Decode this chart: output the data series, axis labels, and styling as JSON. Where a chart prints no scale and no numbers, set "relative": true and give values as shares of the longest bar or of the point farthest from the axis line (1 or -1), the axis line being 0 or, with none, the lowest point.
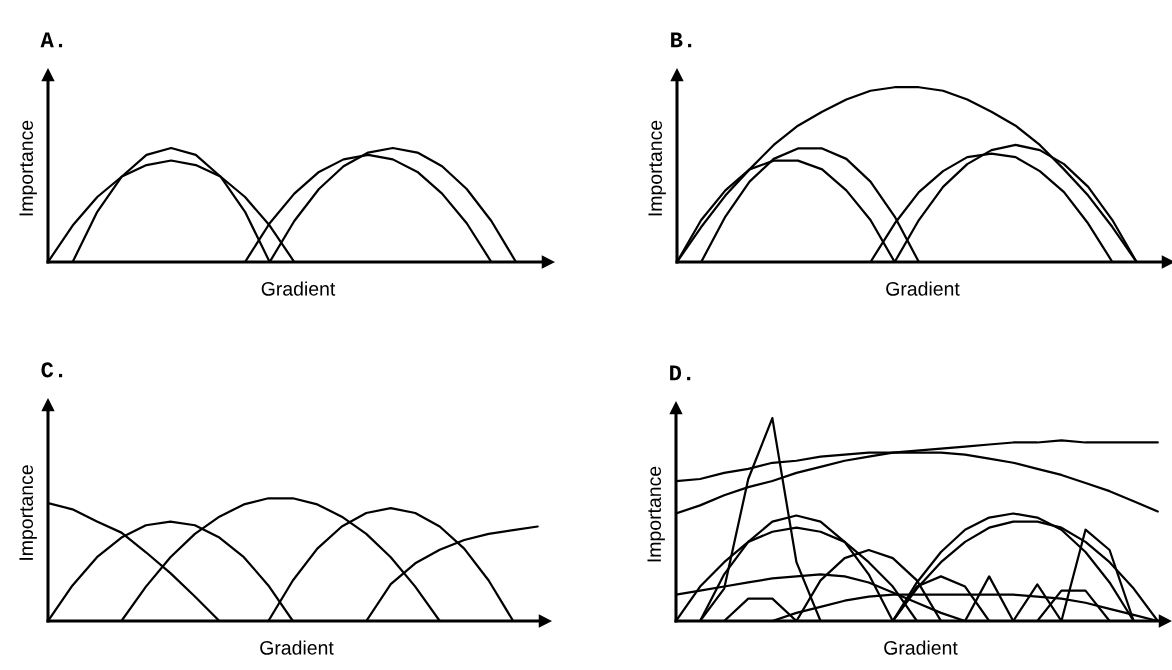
{
  "chart_data": [
    {
      "type": "line",
      "title": "A.",
      "xlabel": "Gradient",
      "ylabel": "Importance",
      "relative": true,
      "tick_labels": false,
      "categories": [
        null,
        null,
        null,
        null,
        null,
        null,
        null,
        null,
        null,
        null,
        null,
        null,
        null,
        null,
        null,
        null,
        null,
        null,
        null,
        null,
        null
      ],
      "series": [
        {
          "color": "#000000",
          "values": [
            null,
            0,
            0.44,
            0.75,
            0.94,
            1,
            0.94,
            0.75,
            0.44,
            0,
            null,
            null,
            null,
            null,
            null,
            null,
            null,
            null,
            null,
            null,
            null
          ]
        },
        {
          "color": "#000000",
          "values": [
            0,
            0.32,
            0.57,
            0.75,
            0.85,
            0.89,
            0.85,
            0.75,
            0.57,
            0.32,
            0,
            null,
            null,
            null,
            null,
            null,
            null,
            null,
            null,
            null,
            null
          ]
        },
        {
          "color": "#000000",
          "values": [
            null,
            null,
            null,
            null,
            null,
            null,
            null,
            null,
            null,
            0,
            0.36,
            0.64,
            0.84,
            0.96,
            1,
            0.96,
            0.84,
            0.64,
            0.36,
            0,
            null
          ]
        },
        {
          "color": "#000000",
          "values": [
            null,
            null,
            null,
            null,
            null,
            null,
            null,
            null,
            0,
            0.34,
            0.6,
            0.79,
            0.9,
            0.94,
            0.9,
            0.79,
            0.6,
            0.34,
            0,
            null,
            null
          ]
        }
      ]
    },
    {
      "type": "line",
      "title": "B.",
      "xlabel": "Gradient",
      "ylabel": "Importance",
      "relative": true,
      "tick_labels": false,
      "categories": [
        null,
        null,
        null,
        null,
        null,
        null,
        null,
        null,
        null,
        null,
        null,
        null,
        null,
        null,
        null,
        null,
        null,
        null,
        null,
        null,
        null
      ],
      "series": [
        {
          "color": "#000000",
          "values": [
            0,
            0.2,
            0.38,
            0.53,
            0.67,
            0.78,
            0.86,
            0.93,
            0.98,
            1,
            1,
            0.98,
            0.93,
            0.86,
            0.78,
            0.67,
            0.53,
            0.38,
            0.2,
            0,
            null
          ]
        },
        {
          "color": "#000000",
          "values": [
            null,
            0,
            0.26,
            0.46,
            0.59,
            0.65,
            0.65,
            0.59,
            0.46,
            0.26,
            0,
            null,
            null,
            null,
            null,
            null,
            null,
            null,
            null,
            null,
            null
          ]
        },
        {
          "color": "#000000",
          "values": [
            0,
            0.24,
            0.41,
            0.53,
            0.58,
            0.58,
            0.53,
            0.41,
            0.24,
            0,
            null,
            null,
            null,
            null,
            null,
            null,
            null,
            null,
            null,
            null,
            null
          ]
        },
        {
          "color": "#000000",
          "values": [
            null,
            null,
            null,
            null,
            null,
            null,
            null,
            null,
            null,
            0,
            0.24,
            0.43,
            0.56,
            0.64,
            0.67,
            0.64,
            0.56,
            0.43,
            0.24,
            0,
            null
          ]
        },
        {
          "color": "#000000",
          "values": [
            null,
            null,
            null,
            null,
            null,
            null,
            null,
            null,
            0,
            0.22,
            0.4,
            0.52,
            0.6,
            0.62,
            0.6,
            0.52,
            0.4,
            0.22,
            0,
            null,
            null
          ]
        }
      ]
    },
    {
      "type": "line",
      "title": "C.",
      "xlabel": "Gradient",
      "ylabel": "Importance",
      "relative": true,
      "tick_labels": false,
      "categories": [
        null,
        null,
        null,
        null,
        null,
        null,
        null,
        null,
        null,
        null,
        null,
        null,
        null,
        null,
        null,
        null,
        null,
        null,
        null,
        null,
        null
      ],
      "series": [
        {
          "color": "#000000",
          "values": [
            0.96,
            0.91,
            0.81,
            0.72,
            0.56,
            0.39,
            0.2,
            0,
            null,
            null,
            null,
            null,
            null,
            null,
            null,
            null,
            null,
            null,
            null,
            null,
            null
          ]
        },
        {
          "color": "#000000",
          "values": [
            0,
            0.29,
            0.52,
            0.68,
            0.78,
            0.81,
            0.78,
            0.68,
            0.52,
            0.29,
            0,
            null,
            null,
            null,
            null,
            null,
            null,
            null,
            null,
            null,
            null
          ]
        },
        {
          "color": "#000000",
          "values": [
            null,
            null,
            null,
            0,
            0.28,
            0.52,
            0.71,
            0.85,
            0.95,
            1,
            1,
            0.95,
            0.85,
            0.71,
            0.52,
            0.28,
            0,
            null,
            null,
            null,
            null
          ]
        },
        {
          "color": "#000000",
          "values": [
            null,
            null,
            null,
            null,
            null,
            null,
            null,
            null,
            null,
            0,
            0.33,
            0.59,
            0.77,
            0.88,
            0.92,
            0.88,
            0.77,
            0.59,
            0.33,
            0,
            null
          ]
        },
        {
          "color": "#000000",
          "values": [
            null,
            null,
            null,
            null,
            null,
            null,
            null,
            null,
            null,
            null,
            null,
            null,
            null,
            0,
            0.3,
            0.47,
            0.58,
            0.66,
            0.71,
            0.74,
            0.77
          ]
        }
      ]
    },
    {
      "type": "line",
      "title": "D.",
      "xlabel": "Gradient",
      "ylabel": "Importance",
      "relative": true,
      "tick_labels": false,
      "categories": [
        null,
        null,
        null,
        null,
        null,
        null,
        null,
        null,
        null,
        null,
        null,
        null,
        null,
        null,
        null,
        null,
        null,
        null,
        null,
        null,
        null
      ],
      "series": [
        {
          "color": "#000000",
          "values": [
            null,
            0,
            0.16,
            0.7,
            1,
            0.29,
            0,
            null,
            null,
            null,
            null,
            null,
            null,
            null,
            null,
            null,
            null,
            null,
            null,
            null,
            null
          ]
        },
        {
          "color": "#000000",
          "values": [
            0.69,
            0.7,
            0.73,
            0.75,
            0.78,
            0.79,
            0.81,
            0.82,
            0.83,
            0.83,
            0.84,
            0.85,
            0.86,
            0.87,
            0.88,
            0.88,
            0.89,
            0.88,
            0.88,
            0.88,
            0.88
          ]
        },
        {
          "color": "#000000",
          "values": [
            0.53,
            0.57,
            0.62,
            0.66,
            0.69,
            0.73,
            0.76,
            0.79,
            0.81,
            0.83,
            0.83,
            0.83,
            0.82,
            0.8,
            0.78,
            0.75,
            0.72,
            0.68,
            0.64,
            0.59,
            0.54
          ]
        },
        {
          "color": "#000000",
          "values": [
            null,
            0,
            0.23,
            0.39,
            0.49,
            0.52,
            0.49,
            0.39,
            0.23,
            0,
            null,
            null,
            null,
            null,
            null,
            null,
            null,
            null,
            null,
            null,
            null
          ]
        },
        {
          "color": "#000000",
          "values": [
            0,
            0.17,
            0.29,
            0.39,
            0.44,
            0.46,
            0.44,
            0.39,
            0.29,
            0.17,
            0,
            null,
            null,
            null,
            null,
            null,
            null,
            null,
            null,
            null,
            null
          ]
        },
        {
          "color": "#000000",
          "values": [
            null,
            null,
            null,
            null,
            null,
            0,
            0.2,
            0.31,
            0.35,
            0.31,
            0.2,
            0,
            null,
            null,
            null,
            null,
            null,
            null,
            null,
            null,
            null
          ]
        },
        {
          "color": "#000000",
          "values": [
            null,
            null,
            0,
            0.11,
            0.11,
            0,
            null,
            null,
            null,
            null,
            null,
            null,
            null,
            null,
            null,
            null,
            null,
            null,
            null,
            null,
            null
          ]
        },
        {
          "color": "#000000",
          "values": [
            0.13,
            0.15,
            0.17,
            0.19,
            0.21,
            0.22,
            0.23,
            0.22,
            0.19,
            0.14,
            0.09,
            0.04,
            0,
            null,
            null,
            null,
            null,
            null,
            null,
            null,
            null
          ]
        },
        {
          "color": "#000000",
          "values": [
            null,
            null,
            null,
            null,
            0,
            0.04,
            0.07,
            0.1,
            0.12,
            0.13,
            0.13,
            0.13,
            0.13,
            0.13,
            0.13,
            0.12,
            0.11,
            0.09,
            0.06,
            0.03,
            0
          ]
        },
        {
          "color": "#000000",
          "values": [
            null,
            null,
            null,
            null,
            null,
            null,
            null,
            null,
            null,
            0,
            0.19,
            0.34,
            0.45,
            0.51,
            0.53,
            0.51,
            0.45,
            0.34,
            0.19,
            0,
            null
          ]
        },
        {
          "color": "#000000",
          "values": [
            null,
            null,
            null,
            null,
            null,
            null,
            null,
            null,
            null,
            0,
            0.16,
            0.29,
            0.39,
            0.46,
            0.49,
            0.49,
            0.46,
            0.39,
            0.29,
            0.16,
            0
          ]
        },
        {
          "color": "#000000",
          "values": [
            null,
            null,
            null,
            null,
            null,
            null,
            null,
            null,
            null,
            null,
            null,
            null,
            null,
            null,
            null,
            null,
            0,
            0.45,
            0.35,
            0,
            null
          ]
        },
        {
          "color": "#000000",
          "values": [
            null,
            null,
            null,
            null,
            null,
            null,
            null,
            null,
            null,
            0,
            0.17,
            0.22,
            0.17,
            0,
            null,
            null,
            null,
            null,
            null,
            null,
            null
          ]
        },
        {
          "color": "#000000",
          "values": [
            null,
            null,
            null,
            null,
            null,
            null,
            null,
            null,
            null,
            null,
            null,
            null,
            0,
            0.22,
            0,
            null,
            null,
            null,
            null,
            null,
            null
          ]
        },
        {
          "color": "#000000",
          "values": [
            null,
            null,
            null,
            null,
            null,
            null,
            null,
            null,
            null,
            null,
            null,
            null,
            null,
            null,
            0,
            0.18,
            0,
            null,
            null,
            null,
            null
          ]
        },
        {
          "color": "#000000",
          "values": [
            null,
            null,
            null,
            null,
            null,
            null,
            null,
            null,
            null,
            null,
            null,
            null,
            null,
            null,
            null,
            0,
            0.15,
            0.15,
            0,
            null,
            null
          ]
        }
      ]
    }
  ]
}
